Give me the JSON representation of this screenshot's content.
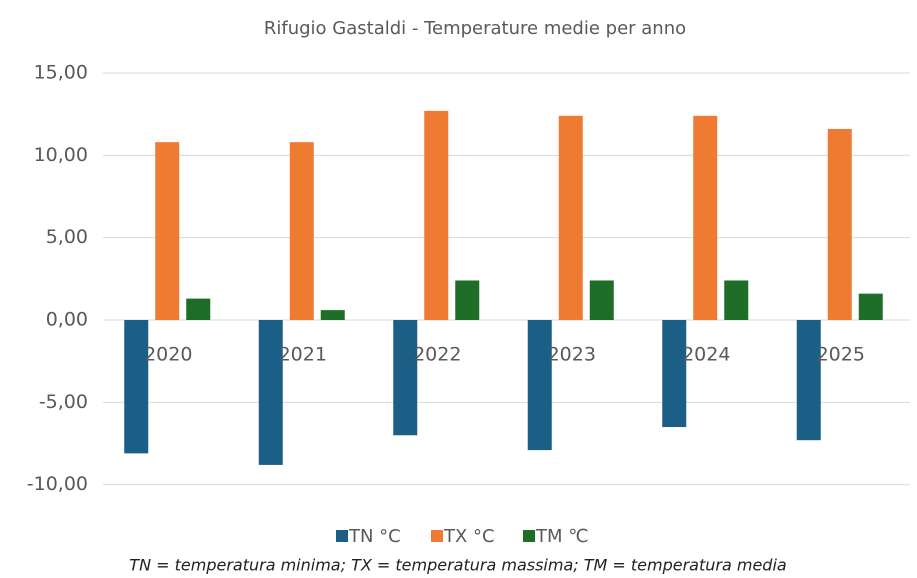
{
  "chart_data": {
    "type": "bar",
    "title": "Rifugio Gastaldi - Temperature medie per anno",
    "categories": [
      "2020",
      "2021",
      "2022",
      "2023",
      "2024",
      "2025"
    ],
    "series": [
      {
        "name": "TN °C",
        "color": "#1b5e86",
        "values": [
          -8.1,
          -8.8,
          -7.0,
          -7.9,
          -6.5,
          -7.3
        ]
      },
      {
        "name": "TX °C",
        "color": "#ef7a32",
        "values": [
          10.8,
          10.8,
          12.7,
          12.4,
          12.4,
          11.6
        ]
      },
      {
        "name": "TM ℃",
        "color": "#1e6e2a",
        "values": [
          1.3,
          0.6,
          2.4,
          2.4,
          2.4,
          1.6
        ]
      }
    ],
    "ylim": [
      -12,
      16
    ],
    "yticks": [
      {
        "value": -10,
        "label": "-10,00"
      },
      {
        "value": -5,
        "label": "-5,00"
      },
      {
        "value": 0,
        "label": "0,00"
      },
      {
        "value": 5,
        "label": "5,00"
      },
      {
        "value": 10,
        "label": "10,00"
      },
      {
        "value": 15,
        "label": "15,00"
      }
    ],
    "grid": true,
    "legend": "bottom",
    "annotation": "TN = temperatura minima; TX = temperatura massima; TM = temperatura media"
  }
}
